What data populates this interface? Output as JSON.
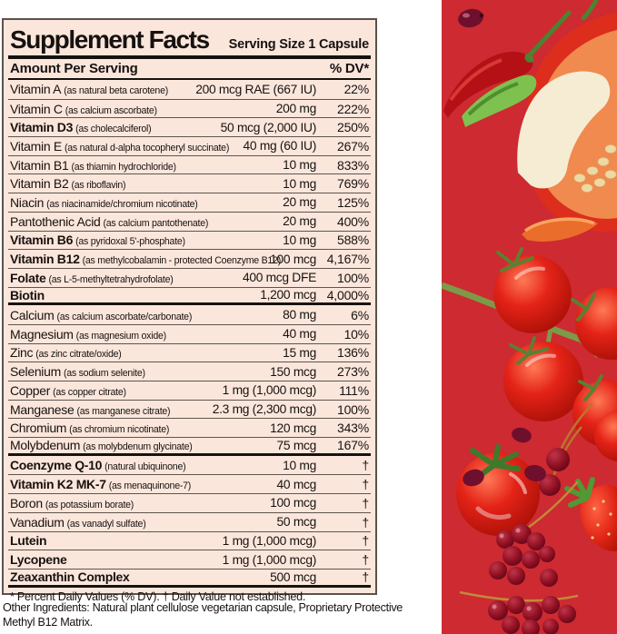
{
  "label": {
    "title": "Supplement Facts",
    "serving_size": "Serving Size 1 Capsule",
    "columns": {
      "amount": "Amount Per Serving",
      "dv": "% DV*"
    },
    "rows": [
      {
        "name": "Vitamin A",
        "detail": "(as natural beta carotene)",
        "amount": "200 mcg RAE (667 IU)",
        "dv": "22%",
        "bold": false,
        "section_end": false
      },
      {
        "name": "Vitamin C",
        "detail": "(as calcium ascorbate)",
        "amount": "200 mg",
        "dv": "222%",
        "bold": false,
        "section_end": false
      },
      {
        "name": "Vitamin D3",
        "detail": "(as cholecalciferol)",
        "amount": "50 mcg (2,000 IU)",
        "dv": "250%",
        "bold": true,
        "section_end": false
      },
      {
        "name": "Vitamin E",
        "detail": "(as natural d-alpha tocopheryl succinate)",
        "amount": "40 mg (60 IU)",
        "dv": "267%",
        "bold": false,
        "section_end": false
      },
      {
        "name": "Vitamin B1",
        "detail": "(as thiamin hydrochloride)",
        "amount": "10 mg",
        "dv": "833%",
        "bold": false,
        "section_end": false
      },
      {
        "name": "Vitamin B2",
        "detail": "(as riboflavin)",
        "amount": "10 mg",
        "dv": "769%",
        "bold": false,
        "section_end": false
      },
      {
        "name": "Niacin",
        "detail": "(as niacinamide/chromium nicotinate)",
        "amount": "20 mg",
        "dv": "125%",
        "bold": false,
        "section_end": false
      },
      {
        "name": "Pantothenic Acid",
        "detail": "(as calcium pantothenate)",
        "amount": "20 mg",
        "dv": "400%",
        "bold": false,
        "section_end": false
      },
      {
        "name": "Vitamin B6",
        "detail": "(as pyridoxal 5'-phosphate)",
        "amount": "10 mg",
        "dv": "588%",
        "bold": true,
        "section_end": false
      },
      {
        "name": "Vitamin B12",
        "detail": "(as methylcobalamin - protected Coenzyme B12)",
        "amount": "100 mcg",
        "dv": "4,167%",
        "bold": true,
        "section_end": false
      },
      {
        "name": "Folate",
        "detail": "(as L-5-methyltetrahydrofolate)",
        "amount": "400 mcg DFE",
        "dv": "100%",
        "bold": true,
        "section_end": false
      },
      {
        "name": "Biotin",
        "detail": "",
        "amount": "1,200 mcg",
        "dv": "4,000%",
        "bold": true,
        "section_end": true
      },
      {
        "name": "Calcium",
        "detail": "(as calcium ascorbate/carbonate)",
        "amount": "80 mg",
        "dv": "6%",
        "bold": false,
        "section_end": false
      },
      {
        "name": "Magnesium",
        "detail": "(as magnesium oxide)",
        "amount": "40 mg",
        "dv": "10%",
        "bold": false,
        "section_end": false
      },
      {
        "name": "Zinc",
        "detail": "(as zinc citrate/oxide)",
        "amount": "15 mg",
        "dv": "136%",
        "bold": false,
        "section_end": false
      },
      {
        "name": "Selenium",
        "detail": "(as sodium selenite)",
        "amount": "150 mcg",
        "dv": "273%",
        "bold": false,
        "section_end": false
      },
      {
        "name": "Copper",
        "detail": "(as copper citrate)",
        "amount": "1 mg (1,000 mcg)",
        "dv": "111%",
        "bold": false,
        "section_end": false
      },
      {
        "name": "Manganese",
        "detail": "(as manganese citrate)",
        "amount": "2.3 mg (2,300 mcg)",
        "dv": "100%",
        "bold": false,
        "section_end": false
      },
      {
        "name": "Chromium",
        "detail": "(as chromium nicotinate)",
        "amount": "120 mcg",
        "dv": "343%",
        "bold": false,
        "section_end": false
      },
      {
        "name": "Molybdenum",
        "detail": "(as molybdenum glycinate)",
        "amount": "75 mcg",
        "dv": "167%",
        "bold": false,
        "section_end": true
      },
      {
        "name": "Coenzyme Q-10",
        "detail": "(natural ubiquinone)",
        "amount": "10 mg",
        "dv": "†",
        "bold": true,
        "section_end": false
      },
      {
        "name": "Vitamin K2 MK-7",
        "detail": "(as menaquinone-7)",
        "amount": "40 mcg",
        "dv": "†",
        "bold": true,
        "section_end": false
      },
      {
        "name": "Boron",
        "detail": "(as potassium borate)",
        "amount": "100 mcg",
        "dv": "†",
        "bold": false,
        "section_end": false
      },
      {
        "name": "Vanadium",
        "detail": "(as vanadyl sulfate)",
        "amount": "50 mcg",
        "dv": "†",
        "bold": false,
        "section_end": false
      },
      {
        "name": "Lutein",
        "detail": "",
        "amount": "1 mg (1,000 mcg)",
        "dv": "†",
        "bold": true,
        "section_end": false
      },
      {
        "name": "Lycopene",
        "detail": "",
        "amount": "1 mg (1,000 mcg)",
        "dv": "†",
        "bold": true,
        "section_end": false
      },
      {
        "name": "Zeaxanthin Complex",
        "detail": "",
        "amount": "500 mcg",
        "dv": "†",
        "bold": true,
        "section_end": true
      }
    ],
    "footnote": "* Percent Daily Values (% DV). † Daily Value not established.",
    "other_ingredients": "Other Ingredients: Natural plant cellulose vegetarian capsule, Proprietary Protective Methyl B12 Matrix."
  },
  "colors": {
    "label_background": "#fbe6dc",
    "rule": "#171210",
    "photo_background": "#cd2a31",
    "tomato_red": "#e42318",
    "currant_red": "#8e0f22",
    "pepper_orange": "#f08a4e",
    "stem_green": "#5f9c3c"
  },
  "artwork": {
    "description": "Collage of red produce on a solid red background",
    "items": [
      "pomegranate-seed",
      "chili-pepper",
      "red-bell-pepper-half",
      "orange-pepper-slice",
      "cherry-tomatoes-on-vine",
      "tomato-with-calyx",
      "cherries",
      "strawberry",
      "red-currant-sprigs"
    ]
  }
}
